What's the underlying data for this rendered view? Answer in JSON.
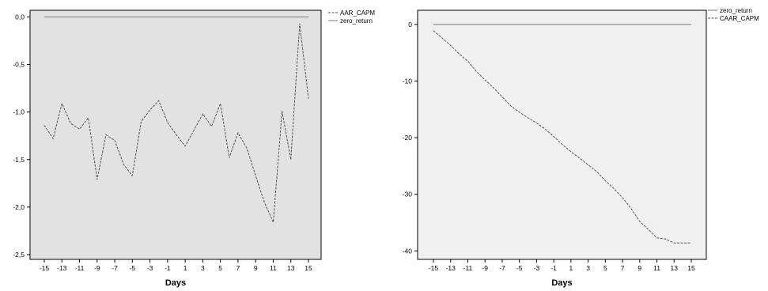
{
  "chart_data": [
    {
      "type": "line",
      "xlabel": "Days",
      "ylabel": "",
      "x": [
        -15,
        -14,
        -13,
        -12,
        -11,
        -10,
        -9,
        -8,
        -7,
        -6,
        -5,
        -4,
        -3,
        -2,
        -1,
        0,
        1,
        2,
        3,
        4,
        5,
        6,
        7,
        8,
        9,
        10,
        11,
        12,
        13,
        14,
        15
      ],
      "xticks": [
        -15,
        -13,
        -11,
        -9,
        -7,
        -5,
        -3,
        -1,
        1,
        3,
        5,
        7,
        9,
        11,
        13,
        15
      ],
      "yticks": [
        "0,0",
        "-0,5",
        "-1,0",
        "-1,5",
        "-2,0",
        "-2,5"
      ],
      "ytick_values": [
        0,
        -0.5,
        -1.0,
        -1.5,
        -2.0,
        -2.5
      ],
      "ylim": [
        -2.55,
        0.07
      ],
      "plot_bg": "#e2e2e2",
      "legend_position": "top-right",
      "series": [
        {
          "name": "AAR_CAPM",
          "style": "dashed",
          "values": [
            -1.14,
            -1.28,
            -0.91,
            -1.12,
            -1.18,
            -1.06,
            -1.71,
            -1.24,
            -1.3,
            -1.55,
            -1.67,
            -1.1,
            -0.98,
            -0.88,
            -1.11,
            -1.24,
            -1.36,
            -1.19,
            -1.02,
            -1.15,
            -0.91,
            -1.48,
            -1.22,
            -1.38,
            -1.67,
            -1.95,
            -2.16,
            -0.99,
            -1.5,
            -0.07,
            -0.86
          ]
        },
        {
          "name": "zero_return",
          "style": "solid",
          "values": [
            0,
            0,
            0,
            0,
            0,
            0,
            0,
            0,
            0,
            0,
            0,
            0,
            0,
            0,
            0,
            0,
            0,
            0,
            0,
            0,
            0,
            0,
            0,
            0,
            0,
            0,
            0,
            0,
            0,
            0,
            0
          ]
        }
      ]
    },
    {
      "type": "line",
      "xlabel": "Days",
      "ylabel": "",
      "x": [
        -15,
        -14,
        -13,
        -12,
        -11,
        -10,
        -9,
        -8,
        -7,
        -6,
        -5,
        -4,
        -3,
        -2,
        -1,
        0,
        1,
        2,
        3,
        4,
        5,
        6,
        7,
        8,
        9,
        10,
        11,
        12,
        13,
        14,
        15
      ],
      "xticks": [
        -15,
        -13,
        -11,
        -9,
        -7,
        -5,
        -3,
        -1,
        1,
        3,
        5,
        7,
        9,
        11,
        13,
        15
      ],
      "yticks": [
        "0",
        "-10",
        "-20",
        "-30",
        "-40"
      ],
      "ytick_values": [
        0,
        -10,
        -20,
        -30,
        -40
      ],
      "ylim": [
        -41.5,
        2.5
      ],
      "plot_bg": "#f0f0f0",
      "legend_position": "top-right",
      "series": [
        {
          "name": "zero_return",
          "style": "solid",
          "values": [
            0,
            0,
            0,
            0,
            0,
            0,
            0,
            0,
            0,
            0,
            0,
            0,
            0,
            0,
            0,
            0,
            0,
            0,
            0,
            0,
            0,
            0,
            0,
            0,
            0,
            0,
            0,
            0,
            0,
            0,
            0
          ]
        },
        {
          "name": "CAAR_CAPM",
          "style": "dashed",
          "values": [
            -1.1,
            -2.4,
            -3.7,
            -5.2,
            -6.5,
            -8.3,
            -9.8,
            -11.2,
            -12.8,
            -14.4,
            -15.5,
            -16.5,
            -17.4,
            -18.5,
            -19.8,
            -21.2,
            -22.5,
            -23.6,
            -24.8,
            -26.0,
            -27.6,
            -29.0,
            -30.6,
            -32.5,
            -34.8,
            -36.2,
            -37.7,
            -37.9,
            -38.6,
            -38.6,
            -38.6
          ]
        }
      ]
    }
  ]
}
